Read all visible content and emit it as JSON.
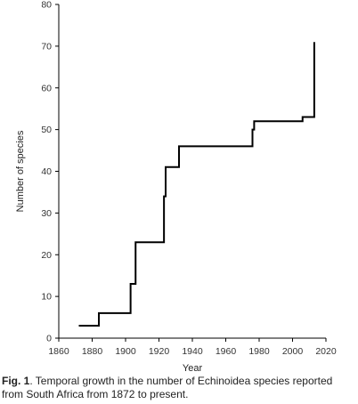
{
  "chart_data": {
    "type": "line",
    "step": true,
    "x": [
      1872,
      1884,
      1884,
      1903,
      1903,
      1905,
      1905,
      1906,
      1906,
      1923,
      1923,
      1923.5,
      1923.5,
      1924,
      1924,
      1932,
      1932,
      1976,
      1976,
      1977,
      1977,
      2006,
      2006,
      2007,
      2007,
      2013,
      2013
    ],
    "y": [
      3,
      3,
      6,
      6,
      13,
      13,
      13,
      13,
      23,
      23,
      34,
      34,
      34,
      34,
      41,
      41,
      46,
      46,
      50,
      50,
      52,
      52,
      53,
      53,
      53,
      53,
      71
    ],
    "xlabel": "Year",
    "ylabel": "Number of species",
    "xlim": [
      1860,
      2020
    ],
    "ylim": [
      0,
      80
    ],
    "xticks": [
      "1860",
      "1880",
      "1900",
      "1920",
      "1940",
      "1960",
      "1980",
      "2000",
      "2020"
    ],
    "yticks": [
      "0",
      "10",
      "20",
      "30",
      "40",
      "50",
      "60",
      "70",
      "80"
    ],
    "grid": false,
    "colors": {
      "line": "#000000",
      "axis": "#000000"
    }
  },
  "caption": {
    "label": "Fig. 1",
    "text": ". Temporal growth in the number of Echinoidea species reported from South Africa from 1872 to present."
  }
}
